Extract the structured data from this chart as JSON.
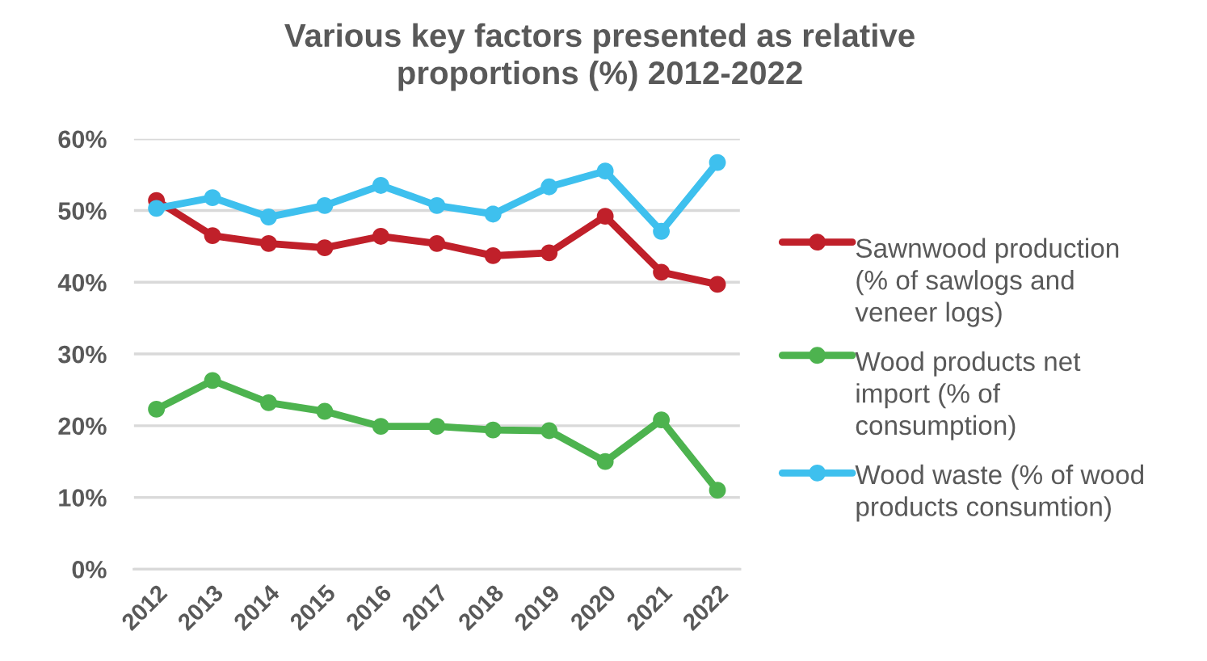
{
  "chart_data": {
    "type": "line",
    "title": "Various key factors presented as relative proportions (%) 2012-2022",
    "categories": [
      "2012",
      "2013",
      "2014",
      "2015",
      "2016",
      "2017",
      "2018",
      "2019",
      "2020",
      "2021",
      "2022"
    ],
    "ylim": [
      0,
      60
    ],
    "yticks": [
      {
        "value": 0,
        "label": "0%"
      },
      {
        "value": 10,
        "label": "10%"
      },
      {
        "value": 20,
        "label": "20%"
      },
      {
        "value": 30,
        "label": "30%"
      },
      {
        "value": 40,
        "label": "40%"
      },
      {
        "value": 50,
        "label": "50%"
      },
      {
        "value": 60,
        "label": "60%"
      }
    ],
    "grid": "y",
    "legend": "right",
    "marker": "circle",
    "line_style": "solid",
    "series": [
      {
        "name": "Sawnwood production (% of sawlogs and veneer logs)",
        "color": "#c0202a",
        "values": [
          51.4,
          46.5,
          45.4,
          44.8,
          46.4,
          45.4,
          43.7,
          44.1,
          49.2,
          41.4,
          39.7
        ]
      },
      {
        "name": "Wood products net import (% of consumption)",
        "color": "#4db34f",
        "values": [
          22.3,
          26.3,
          23.2,
          22.0,
          19.9,
          19.9,
          19.4,
          19.3,
          15.0,
          20.8,
          11.0
        ]
      },
      {
        "name": "Wood waste (% of wood products consumtion)",
        "color": "#3ec0ee",
        "values": [
          50.3,
          51.8,
          49.1,
          50.7,
          53.5,
          50.7,
          49.5,
          53.3,
          55.5,
          47.1,
          56.7
        ]
      }
    ]
  }
}
